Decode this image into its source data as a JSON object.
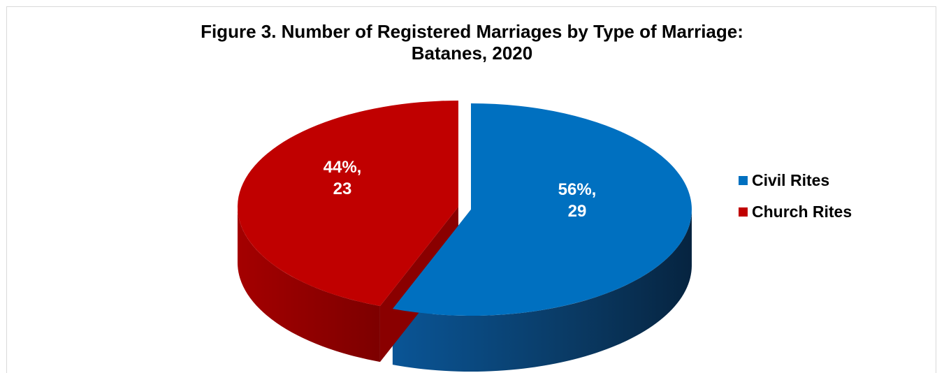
{
  "chart_data": {
    "type": "pie",
    "title": "Figure 3. Number of Registered Marriages by Type of Marriage:",
    "subtitle": "Batanes, 2020",
    "three_d": true,
    "exploded": true,
    "legend_position": "right",
    "slices": [
      {
        "name": "Civil Rites",
        "value": 29,
        "percent_label": "56%,",
        "value_label": "29",
        "color": "#0070C0",
        "side_color": "#0b3d66"
      },
      {
        "name": "Church Rites",
        "value": 23,
        "percent_label": "44%,",
        "value_label": "23",
        "color": "#C00000",
        "side_color": "#8a0000"
      }
    ]
  }
}
